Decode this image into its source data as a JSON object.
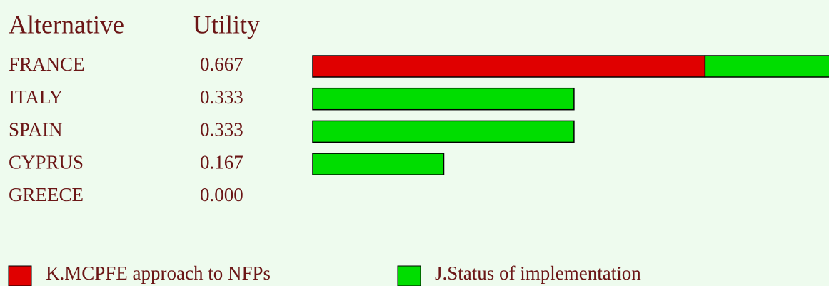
{
  "chart_data": {
    "type": "stacked-bar-horizontal",
    "column_headers": [
      "Alternative",
      "Utility"
    ],
    "categories": [
      "FRANCE",
      "ITALY",
      "SPAIN",
      "CYPRUS",
      "GREECE"
    ],
    "utility_labels": [
      "0.667",
      "0.333",
      "0.333",
      "0.167",
      "0.000"
    ],
    "series": [
      {
        "name": "K.MCPFE approach to NFPs",
        "color": "#e00000",
        "values": [
          0.5,
          0,
          0,
          0,
          0
        ]
      },
      {
        "name": "J.Status of implementation",
        "color": "#00dd00",
        "values": [
          0.167,
          0.333,
          0.333,
          0.167,
          0
        ]
      }
    ],
    "xlim": [
      0,
      0.658
    ]
  }
}
